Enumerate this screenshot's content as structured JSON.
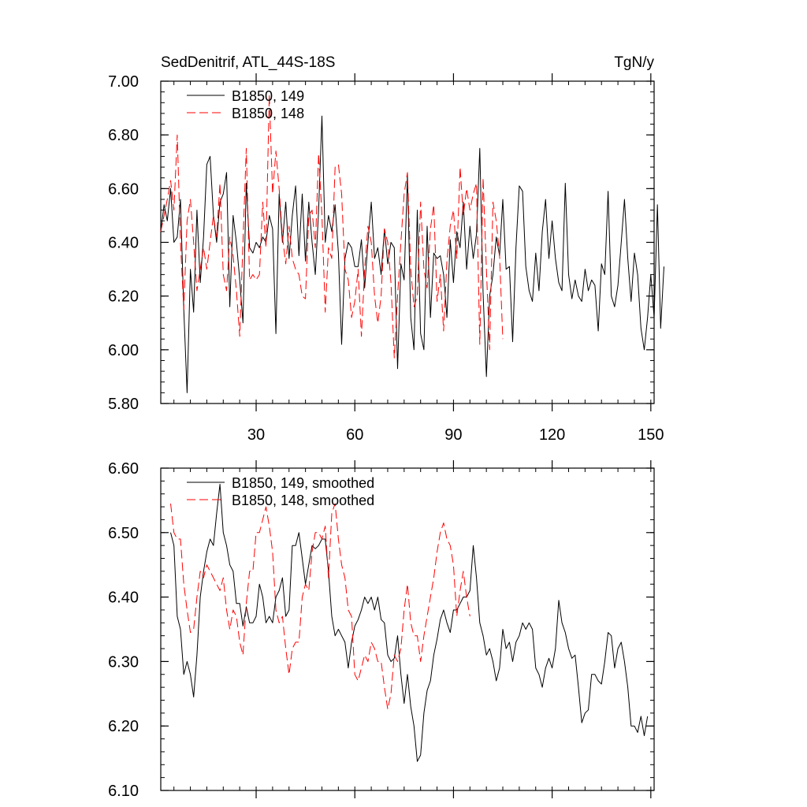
{
  "header": {
    "left_title": "SedDenitrif, ATL_44S-18S",
    "right_title": "TgN/y"
  },
  "colors": {
    "axis": "#000000",
    "series_149": "#000000",
    "series_148": "#ff0000"
  },
  "chart_data": [
    {
      "type": "line",
      "xlim": [
        1,
        151
      ],
      "ylim": [
        5.8,
        7.0
      ],
      "x_ticks": [
        30,
        60,
        90,
        120,
        150
      ],
      "x_tick_labels": [
        "30",
        "60",
        "90",
        "120",
        "150"
      ],
      "y_ticks": [
        5.8,
        6.0,
        6.2,
        6.4,
        6.6,
        6.8,
        7.0
      ],
      "y_tick_labels": [
        "5.80",
        "6.00",
        "6.20",
        "6.40",
        "6.60",
        "6.80",
        "7.00"
      ],
      "legend_position": "top-left",
      "series": [
        {
          "name": "B1850, 149",
          "style": "solid",
          "color": "#000000",
          "x_start": 1,
          "values": [
            6.44,
            6.54,
            6.48,
            6.6,
            6.4,
            6.42,
            6.56,
            6.15,
            5.84,
            6.3,
            6.14,
            6.52,
            6.25,
            6.42,
            6.69,
            6.72,
            6.5,
            6.4,
            6.55,
            6.58,
            6.66,
            6.16,
            6.5,
            6.4,
            6.26,
            6.1,
            6.62,
            6.38,
            6.36,
            6.4,
            6.38,
            6.42,
            6.4,
            6.5,
            6.45,
            6.06,
            6.58,
            6.4,
            6.55,
            6.34,
            6.5,
            6.61,
            6.35,
            6.58,
            6.33,
            6.55,
            6.4,
            6.28,
            6.52,
            6.87,
            6.4,
            6.5,
            6.44,
            6.54,
            6.36,
            6.02,
            6.34,
            6.4,
            6.38,
            6.31,
            6.31,
            6.41,
            6.23,
            6.4,
            6.55,
            6.34,
            6.38,
            6.28,
            6.45,
            6.32,
            6.4,
            6.38,
            5.93,
            6.32,
            6.26,
            6.65,
            6.12,
            6.0,
            6.52,
            6.06,
            6.0,
            6.46,
            6.12,
            6.36,
            6.34,
            6.35,
            6.28,
            6.12,
            6.41,
            6.25,
            6.44,
            6.38,
            6.55,
            6.3,
            6.46,
            6.34,
            6.43,
            6.75,
            6.21,
            5.9,
            6.2,
            6.28,
            6.42,
            6.35,
            6.56,
            6.3,
            6.31,
            6.03,
            6.38,
            6.61,
            6.59,
            6.31,
            6.22,
            6.18,
            6.36,
            6.22,
            6.44,
            6.56,
            6.34,
            6.48,
            6.34,
            6.25,
            6.22,
            6.62,
            6.28,
            6.19,
            6.26,
            6.2,
            6.18,
            6.3,
            6.22,
            6.26,
            6.24,
            6.07,
            6.32,
            6.28,
            6.59,
            6.2,
            6.16,
            6.24,
            6.4,
            6.56,
            6.34,
            6.18,
            6.36,
            6.28,
            6.08,
            6.0,
            6.12,
            6.28,
            6.12,
            6.54,
            6.08,
            6.31
          ]
        },
        {
          "name": "B1850, 148",
          "style": "dashed",
          "color": "#ff0000",
          "x_start": 1,
          "values": [
            6.44,
            6.5,
            6.56,
            6.63,
            6.52,
            6.8,
            6.4,
            6.15,
            6.48,
            6.56,
            6.4,
            6.22,
            6.3,
            6.38,
            6.3,
            6.4,
            6.5,
            6.42,
            6.62,
            6.28,
            6.22,
            6.42,
            6.35,
            6.22,
            6.05,
            6.4,
            6.75,
            6.26,
            6.28,
            6.26,
            6.28,
            6.55,
            6.38,
            6.95,
            6.58,
            6.74,
            6.6,
            6.42,
            6.32,
            6.46,
            6.34,
            6.3,
            6.28,
            6.2,
            6.19,
            6.5,
            6.52,
            6.38,
            6.73,
            6.5,
            6.14,
            6.38,
            6.34,
            6.68,
            6.69,
            6.58,
            6.3,
            6.26,
            6.12,
            6.18,
            6.3,
            6.05,
            6.3,
            6.46,
            6.4,
            6.2,
            6.1,
            6.2,
            6.45,
            6.4,
            6.25,
            5.97,
            6.2,
            6.4,
            6.58,
            6.66,
            6.3,
            6.16,
            6.2,
            6.55,
            6.3,
            6.23,
            6.45,
            6.54,
            6.18,
            6.28,
            6.07,
            6.33,
            6.46,
            6.52,
            6.34,
            6.68,
            6.5,
            6.6,
            6.52,
            6.58,
            6.62,
            6.02,
            6.64,
            6.3,
            6.0,
            6.55,
            6.48,
            6.35,
            6.04
          ]
        }
      ]
    },
    {
      "type": "line",
      "xlim": [
        1,
        151
      ],
      "ylim": [
        6.1,
        6.6
      ],
      "x_ticks": [
        30,
        60,
        90,
        120,
        150
      ],
      "x_tick_labels": [],
      "y_ticks": [
        6.1,
        6.2,
        6.3,
        6.4,
        6.5,
        6.6
      ],
      "y_tick_labels": [
        "6.10",
        "6.20",
        "6.30",
        "6.40",
        "6.50",
        "6.60"
      ],
      "legend_position": "top-left",
      "series": [
        {
          "name": "B1850, 149, smoothed",
          "style": "solid",
          "color": "#000000",
          "x_start": 4,
          "values": [
            6.5,
            6.48,
            6.37,
            6.35,
            6.28,
            6.3,
            6.28,
            6.245,
            6.31,
            6.4,
            6.44,
            6.47,
            6.49,
            6.48,
            6.53,
            6.575,
            6.5,
            6.48,
            6.45,
            6.44,
            6.39,
            6.39,
            6.355,
            6.385,
            6.36,
            6.36,
            6.37,
            6.42,
            6.4,
            6.36,
            6.37,
            6.36,
            6.4,
            6.41,
            6.43,
            6.37,
            6.38,
            6.48,
            6.48,
            6.5,
            6.46,
            6.42,
            6.45,
            6.48,
            6.475,
            6.48,
            6.49,
            6.49,
            6.44,
            6.37,
            6.34,
            6.35,
            6.34,
            6.33,
            6.29,
            6.33,
            6.355,
            6.365,
            6.38,
            6.4,
            6.39,
            6.4,
            6.38,
            6.4,
            6.365,
            6.36,
            6.31,
            6.3,
            6.305,
            6.34,
            6.28,
            6.235,
            6.28,
            6.23,
            6.2,
            6.145,
            6.155,
            6.22,
            6.255,
            6.27,
            6.31,
            6.335,
            6.365,
            6.38,
            6.36,
            6.345,
            6.38,
            6.38,
            6.39,
            6.4,
            6.4,
            6.41,
            6.48,
            6.43,
            6.36,
            6.34,
            6.31,
            6.32,
            6.3,
            6.27,
            6.29,
            6.35,
            6.32,
            6.33,
            6.3,
            6.33,
            6.34,
            6.36,
            6.35,
            6.36,
            6.35,
            6.29,
            6.28,
            6.26,
            6.29,
            6.305,
            6.29,
            6.32,
            6.395,
            6.36,
            6.345,
            6.32,
            6.305,
            6.31,
            6.26,
            6.205,
            6.22,
            6.225,
            6.28,
            6.28,
            6.27,
            6.265,
            6.3,
            6.345,
            6.34,
            6.29,
            6.32,
            6.33,
            6.3,
            6.26,
            6.2,
            6.2,
            6.19,
            6.215,
            6.185,
            6.215
          ]
        },
        {
          "name": "B1850, 148, smoothed",
          "style": "dashed",
          "color": "#ff0000",
          "x_start": 4,
          "values": [
            6.545,
            6.5,
            6.49,
            6.49,
            6.42,
            6.38,
            6.345,
            6.35,
            6.4,
            6.44,
            6.43,
            6.45,
            6.44,
            6.43,
            6.42,
            6.41,
            6.43,
            6.38,
            6.35,
            6.38,
            6.37,
            6.33,
            6.31,
            6.39,
            6.44,
            6.44,
            6.5,
            6.5,
            6.52,
            6.54,
            6.51,
            6.47,
            6.38,
            6.36,
            6.37,
            6.32,
            6.28,
            6.32,
            6.33,
            6.33,
            6.4,
            6.42,
            6.41,
            6.47,
            6.5,
            6.5,
            6.49,
            6.51,
            6.43,
            6.53,
            6.545,
            6.49,
            6.45,
            6.43,
            6.38,
            6.37,
            6.28,
            6.27,
            6.29,
            6.31,
            6.3,
            6.33,
            6.32,
            6.3,
            6.3,
            6.26,
            6.226,
            6.25,
            6.31,
            6.3,
            6.32,
            6.38,
            6.42,
            6.36,
            6.34,
            6.34,
            6.3,
            6.34,
            6.37,
            6.4,
            6.43,
            6.47,
            6.5,
            6.515,
            6.49,
            6.48,
            6.45,
            6.37,
            6.41,
            6.44,
            6.4,
            6.37
          ]
        }
      ]
    }
  ]
}
